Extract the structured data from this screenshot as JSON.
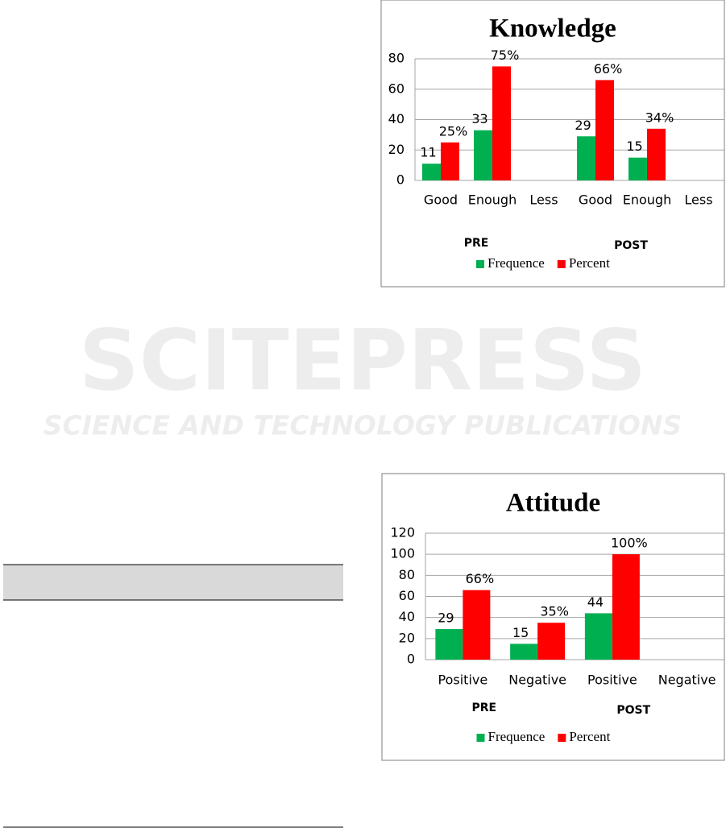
{
  "watermark": {
    "title": "SCITEPRESS",
    "subtitle": "SCIENCE AND TECHNOLOGY PUBLICATIONS"
  },
  "chart_data": [
    {
      "type": "bar",
      "title": "Knowledge",
      "categories": [
        "Good",
        "Enough",
        "Less",
        "Good",
        "Enough",
        "Less"
      ],
      "groups": [
        "PRE",
        "POST"
      ],
      "series": [
        {
          "name": "Frequence",
          "color": "#00b050",
          "values": [
            11,
            33,
            null,
            29,
            15,
            null
          ]
        },
        {
          "name": "Percent",
          "color": "#ff0000",
          "values": [
            25,
            75,
            null,
            66,
            34,
            null
          ],
          "value_labels": [
            "25%",
            "75%",
            null,
            "66%",
            "34%",
            null
          ]
        }
      ],
      "ylim": [
        0,
        80
      ],
      "yticks": [
        0,
        20,
        40,
        60,
        80
      ],
      "grid": true,
      "legend": "bottom"
    },
    {
      "type": "bar",
      "title": "Attitude",
      "categories": [
        "Positive",
        "Negative",
        "Positive",
        "Negative"
      ],
      "groups": [
        "PRE",
        "POST"
      ],
      "series": [
        {
          "name": "Frequence",
          "color": "#00b050",
          "values": [
            29,
            15,
            44,
            null
          ]
        },
        {
          "name": "Percent",
          "color": "#ff0000",
          "values": [
            66,
            35,
            100,
            null
          ],
          "value_labels": [
            "66%",
            "35%",
            "100%",
            null
          ]
        }
      ],
      "ylim": [
        0,
        120
      ],
      "yticks": [
        0,
        20,
        40,
        60,
        80,
        100,
        120
      ],
      "grid": true,
      "legend": "bottom"
    }
  ]
}
